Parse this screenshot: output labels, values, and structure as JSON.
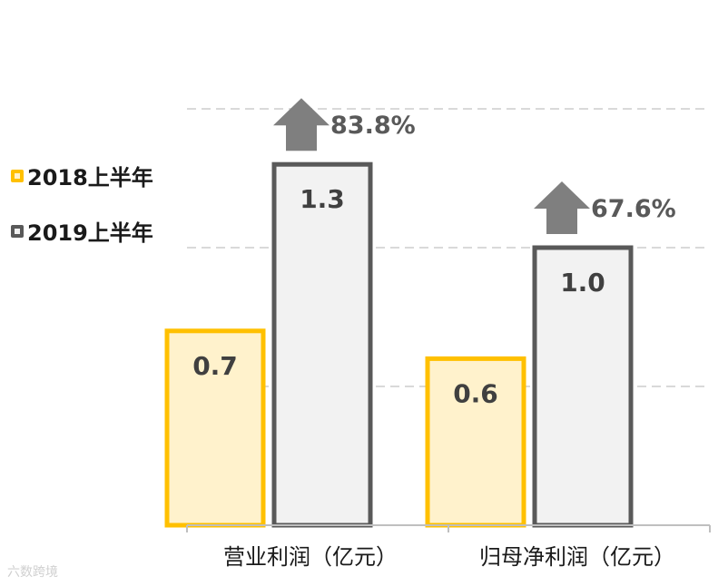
{
  "chart_data": {
    "type": "bar",
    "categories": [
      "营业利润（亿元）",
      "归母净利润（亿元）"
    ],
    "series": [
      {
        "name": "2018上半年",
        "values": [
          0.7,
          0.6
        ],
        "value_labels": [
          "0.7",
          "0.6"
        ],
        "stroke": "#FFC000",
        "fill": "#FFF2CC"
      },
      {
        "name": "2019上半年",
        "values": [
          1.3,
          1.0
        ],
        "value_labels": [
          "1.3",
          "1.0"
        ],
        "stroke": "#595959",
        "fill": "#F2F2F2"
      }
    ],
    "growth_labels": [
      "83.8%",
      "67.6%"
    ],
    "ylim": [
      0,
      1.5
    ],
    "grid": "dashed",
    "legend_position": "left",
    "arrow_color": "#7F7F7F",
    "label_color": "#404040"
  },
  "watermark": "六数跨境"
}
